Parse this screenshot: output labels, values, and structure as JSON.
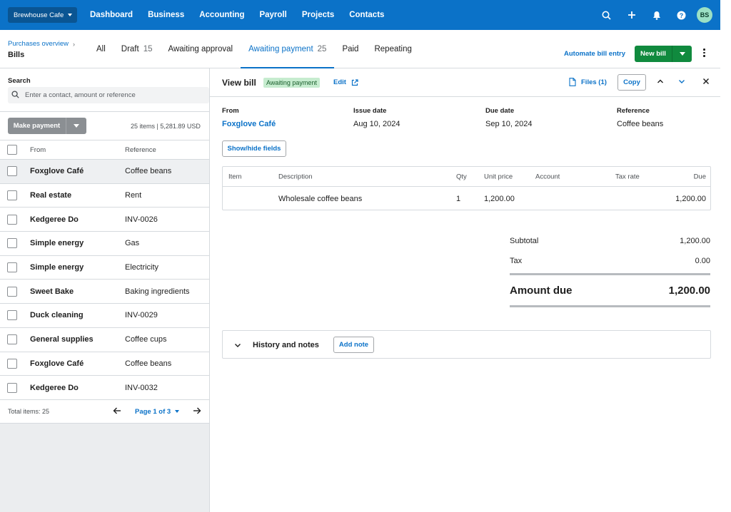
{
  "org": {
    "name": "Brewhouse Cafe"
  },
  "nav": {
    "links": [
      "Dashboard",
      "Business",
      "Accounting",
      "Payroll",
      "Projects",
      "Contacts"
    ],
    "icons": [
      "search-icon",
      "plus-icon",
      "bell-icon",
      "help-icon"
    ],
    "avatar": "BS"
  },
  "subheader": {
    "breadcrumb": "Purchases overview",
    "title": "Bills",
    "tabs": [
      {
        "label": "All",
        "count": ""
      },
      {
        "label": "Draft",
        "count": "15"
      },
      {
        "label": "Awaiting approval",
        "count": ""
      },
      {
        "label": "Awaiting payment",
        "count": "25"
      },
      {
        "label": "Paid",
        "count": ""
      },
      {
        "label": "Repeating",
        "count": ""
      }
    ],
    "active_tab": "Awaiting payment",
    "automate_label": "Automate bill entry",
    "new_bill_label": "New bill"
  },
  "list": {
    "search_label": "Search",
    "search_placeholder": "Enter a contact, amount or reference",
    "make_payment_label": "Make payment",
    "items_info": "25 items | 5,281.89 USD",
    "col_from": "From",
    "col_reference": "Reference",
    "rows": [
      {
        "from": "Foxglove Café",
        "reference": "Coffee beans",
        "selected": true
      },
      {
        "from": "Real estate",
        "reference": "Rent"
      },
      {
        "from": "Kedgeree Do",
        "reference": "INV-0026"
      },
      {
        "from": "Simple energy",
        "reference": "Gas"
      },
      {
        "from": "Simple energy",
        "reference": "Electricity"
      },
      {
        "from": "Sweet Bake",
        "reference": "Baking ingredients"
      },
      {
        "from": "Duck cleaning",
        "reference": "INV-0029"
      },
      {
        "from": "General supplies",
        "reference": "Coffee cups"
      },
      {
        "from": "Foxglove Café",
        "reference": "Coffee beans"
      },
      {
        "from": "Kedgeree Do",
        "reference": "INV-0032"
      }
    ],
    "total_items": "Total items: 25",
    "page_label": "Page 1 of 3"
  },
  "bill": {
    "title": "View bill",
    "status": "Awaiting payment",
    "edit_label": "Edit",
    "files_label": "Files (1)",
    "copy_label": "Copy",
    "fields": {
      "from_label": "From",
      "from_value": "Foxglove Café",
      "issue_label": "Issue date",
      "issue_value": "Aug 10, 2024",
      "due_label": "Due date",
      "due_value": "Sep 10, 2024",
      "ref_label": "Reference",
      "ref_value": "Coffee beans"
    },
    "show_hide_label": "Show/hide fields",
    "line_headers": {
      "item": "Item",
      "description": "Description",
      "qty": "Qty",
      "unit_price": "Unit price",
      "account": "Account",
      "tax_rate": "Tax rate",
      "due": "Due"
    },
    "line": {
      "item": "",
      "description": "Wholesale coffee beans",
      "qty": "1",
      "unit_price": "1,200.00",
      "account": "",
      "tax_rate": "",
      "due": "1,200.00"
    },
    "totals": {
      "subtotal_label": "Subtotal",
      "subtotal": "1,200.00",
      "tax_label": "Tax",
      "tax": "0.00",
      "amount_due_label": "Amount due",
      "amount_due": "1,200.00"
    },
    "history_label": "History and notes",
    "add_note_label": "Add note"
  },
  "colors": {
    "brand_blue": "#0b72c8",
    "nav_dark": "#0a5593",
    "green": "#108a3e",
    "status_bg": "#c6eccf"
  }
}
